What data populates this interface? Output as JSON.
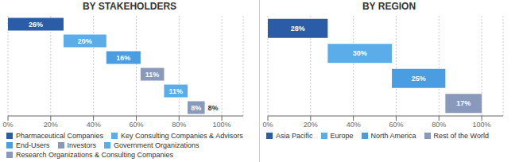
{
  "chart_data": [
    {
      "type": "waterfall",
      "orientation": "horizontal",
      "title": "BY STAKEHOLDERS",
      "categories": [
        "Pharmaceutical Companies",
        "Key Consulting Companies & Advisors",
        "End-Users",
        "Investors",
        "Government Organizations",
        "Research Organizations & Consulting Companies"
      ],
      "values": [
        26,
        20,
        16,
        11,
        11,
        8
      ],
      "value_labels": [
        "26%",
        "20%",
        "16%",
        "11%",
        "11%",
        "8%"
      ],
      "data_labels": true,
      "colors": [
        "#2a5ca8",
        "#5aade8",
        "#4a9de0",
        "#8899bb",
        "#5aade8",
        "#8899bb"
      ],
      "annotations": [
        "8%"
      ],
      "xlim": [
        0,
        110
      ],
      "xticks": [
        {
          "value": 0,
          "label": "0%"
        },
        {
          "value": 20,
          "label": "20%"
        },
        {
          "value": 40,
          "label": "40%"
        },
        {
          "value": 60,
          "label": "60%"
        },
        {
          "value": 80,
          "label": "80%"
        },
        {
          "value": 100,
          "label": "100%"
        }
      ],
      "grid": true,
      "legend": "bottom",
      "tick_labels": "x"
    },
    {
      "type": "waterfall",
      "orientation": "horizontal",
      "title": "BY REGION",
      "categories": [
        "Asia Pacific",
        "Europe",
        "North America",
        "Rest of the World"
      ],
      "values": [
        28,
        30,
        25,
        17
      ],
      "value_labels": [
        "28%",
        "30%",
        "25%",
        "17%"
      ],
      "data_labels": true,
      "colors": [
        "#2a5ca8",
        "#5aade8",
        "#4a9de0",
        "#8899bb"
      ],
      "xlim": [
        0,
        110
      ],
      "xticks": [
        {
          "value": 0,
          "label": "0%"
        },
        {
          "value": 20,
          "label": "20%"
        },
        {
          "value": 40,
          "label": "40%"
        },
        {
          "value": 60,
          "label": "60%"
        },
        {
          "value": 80,
          "label": "80%"
        },
        {
          "value": 100,
          "label": "100%"
        }
      ],
      "grid": true,
      "legend": "bottom",
      "tick_labels": "x"
    }
  ]
}
